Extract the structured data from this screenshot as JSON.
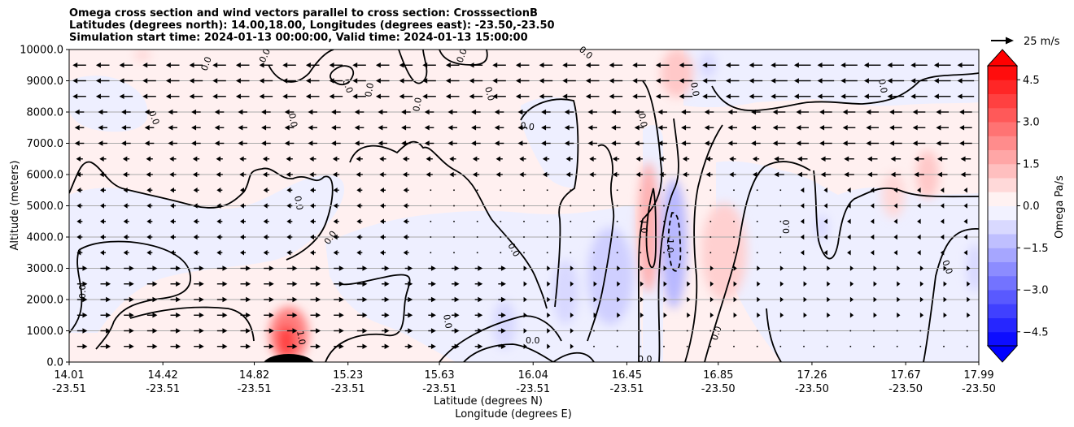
{
  "chart_data": {
    "type": "contour",
    "title_lines": [
      "Omega cross section and wind vectors parallel to cross section: CrosssectionB",
      "Latitudes (degrees north): 14.00,18.00, Longitudes (degrees east): -23.50,-23.50",
      "Simulation start time: 2024-01-13 00:00:00, Valid time: 2024-01-13 15:00:00"
    ],
    "ylabel": "Altitude (meters)",
    "xlabel_lat": "Latitude (degrees N)",
    "xlabel_lon": "Longitude (degrees E)",
    "ylim": [
      0,
      10000
    ],
    "y_ticks": [
      "0.0",
      "1000.0",
      "2000.0",
      "3000.0",
      "4000.0",
      "5000.0",
      "6000.0",
      "7000.0",
      "8000.0",
      "9000.0",
      "10000.0"
    ],
    "y_tick_values": [
      0,
      1000,
      2000,
      3000,
      4000,
      5000,
      6000,
      7000,
      8000,
      9000,
      10000
    ],
    "xlim": [
      14.01,
      17.99
    ],
    "x_tick_values": [
      14.01,
      14.42,
      14.82,
      15.23,
      15.63,
      16.04,
      16.45,
      16.85,
      17.26,
      17.67,
      17.99
    ],
    "x_ticks_lat": [
      "14.01",
      "14.42",
      "14.82",
      "15.23",
      "15.63",
      "16.04",
      "16.45",
      "16.85",
      "17.26",
      "17.67",
      "17.99"
    ],
    "x_ticks_lon": [
      "-23.51",
      "-23.51",
      "-23.51",
      "-23.51",
      "-23.51",
      "-23.51",
      "-23.51",
      "-23.50",
      "-23.50",
      "-23.50",
      "-23.50"
    ],
    "grid": "horizontal",
    "colorbar": {
      "label": "Omega Pa/s",
      "range": [
        -5.0,
        5.0
      ],
      "step": 0.5,
      "extend": "both",
      "cmap": "bwr",
      "tick_values": [
        -4.5,
        -3.0,
        -1.5,
        0.0,
        1.5,
        3.0,
        4.5
      ],
      "tick_labels": [
        "−4.5",
        "−3.0",
        "−1.5",
        "0.0",
        "1.5",
        "3.0",
        "4.5"
      ]
    },
    "quiver_key": {
      "label": "25 m/s",
      "speed": 25
    },
    "contour_labels": [
      "0.0",
      "1.0",
      "-1.0"
    ],
    "omega_features": [
      {
        "lat": 15.0,
        "alt": 800,
        "value": 2.5
      },
      {
        "lat": 16.49,
        "alt": 3500,
        "value": 1.5
      },
      {
        "lat": 16.59,
        "alt": 4000,
        "value": -1.5
      },
      {
        "lat": 16.42,
        "alt": 2800,
        "value": -1.2
      },
      {
        "lat": 16.32,
        "alt": 2200,
        "value": -1.0
      },
      {
        "lat": 16.62,
        "alt": 9300,
        "value": 0.8
      },
      {
        "lat": 16.98,
        "alt": 3300,
        "value": 0.8
      },
      {
        "lat": 16.48,
        "alt": 5800,
        "value": 0.8
      },
      {
        "lat": 17.9,
        "alt": 6000,
        "value": 0.8
      },
      {
        "lat": 17.99,
        "alt": 3000,
        "value": -0.8
      }
    ]
  }
}
